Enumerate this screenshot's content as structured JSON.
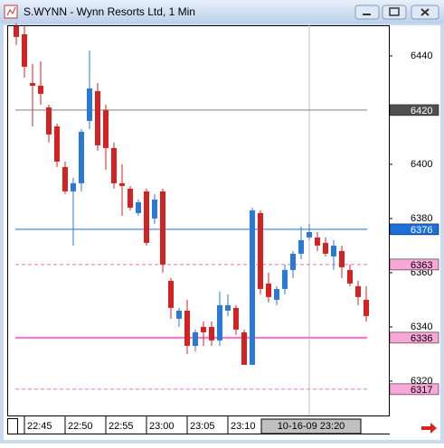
{
  "chart_data": {
    "type": "candlestick",
    "title": "S.WYNN - Wynn Resorts Ltd, 1 Min",
    "categories": [
      null,
      "22:45",
      null,
      null,
      null,
      null,
      "22:50",
      null,
      null,
      null,
      null,
      "22:55",
      null,
      null,
      null,
      null,
      "23:00",
      null,
      null,
      null,
      null,
      "23:05",
      null,
      null,
      null,
      null,
      "23:10",
      null,
      null,
      null,
      null,
      null,
      null,
      null,
      null,
      null,
      "10-16-09 23:20",
      null,
      null,
      null,
      null,
      null,
      null,
      null
    ],
    "crosshair_index": 36,
    "open": [
      6451,
      6448,
      6430,
      6429,
      6421,
      6414,
      6399,
      6390,
      6393,
      6416,
      6427,
      6420,
      6406,
      6393,
      6391,
      6382,
      6390,
      6380,
      6390,
      6357,
      6343,
      6346,
      6333,
      6340,
      6340,
      6335,
      6346,
      6347,
      6338,
      6326,
      6382,
      6356,
      6350,
      6354,
      6361,
      6367,
      6373,
      6373,
      6371,
      6366,
      6368,
      6361,
      6355,
      6350
    ],
    "high": [
      6452,
      6451,
      6437,
      6438,
      6422,
      6415,
      6401,
      6395,
      6413,
      6442,
      6430,
      6422,
      6408,
      6400,
      6392,
      6387,
      6391,
      6389,
      6391,
      6358,
      6347,
      6350,
      6339,
      6342,
      6342,
      6353,
      6352,
      6348,
      6339,
      6384,
      6383,
      6360,
      6355,
      6363,
      6368,
      6377,
      6378,
      6375,
      6373,
      6372,
      6370,
      6363,
      6357,
      6355
    ],
    "low": [
      6444,
      6432,
      6414,
      6422,
      6408,
      6399,
      6389,
      6370,
      6390,
      6413,
      6405,
      6398,
      6391,
      6381,
      6383,
      6381,
      6370,
      6378,
      6360,
      6343,
      6340,
      6330,
      6331,
      6333,
      6333,
      6333,
      6344,
      6337,
      6326,
      6326,
      6352,
      6349,
      6348,
      6352,
      6358,
      6365,
      6372,
      6368,
      6366,
      6361,
      6358,
      6355,
      6348,
      6342
    ],
    "close": [
      6447,
      6436,
      6429,
      6426,
      6411,
      6401,
      6390,
      6393,
      6412,
      6428,
      6407,
      6406,
      6393,
      6392,
      6384,
      6386,
      6371,
      6387,
      6363,
      6347,
      6346,
      6333,
      6338,
      6338,
      6335,
      6348,
      6348,
      6339,
      6326,
      6383,
      6354,
      6351,
      6354,
      6361,
      6367,
      6372,
      6375,
      6370,
      6367,
      6370,
      6362,
      6356,
      6351,
      6344
    ],
    "up_color": "#2a7ad5",
    "down_color": "#d42222",
    "ylim": [
      6307.3,
      6451.3
    ],
    "yticks": [
      6320,
      6340,
      6360,
      6380,
      6400,
      6440
    ],
    "levels": [
      {
        "value": 6420,
        "color": "#808080",
        "tag_color": "#505050",
        "text_color": "#ffffff",
        "dash": false
      },
      {
        "value": 6376,
        "color": "#1a6fd8",
        "tag_color": "#1a6fd8",
        "text_color": "#ffffff",
        "dash": false
      },
      {
        "value": 6363,
        "color": "#e870b8",
        "tag_color": "#f7a8d8",
        "text_color": "#000000",
        "dash": true
      },
      {
        "value": 6336,
        "color": "#ff6ec7",
        "tag_color": "#f7a8d8",
        "text_color": "#000000",
        "dash": false
      },
      {
        "value": 6317,
        "color": "#e870b8",
        "tag_color": "#f7a8d8",
        "text_color": "#000000",
        "dash": true
      }
    ]
  }
}
